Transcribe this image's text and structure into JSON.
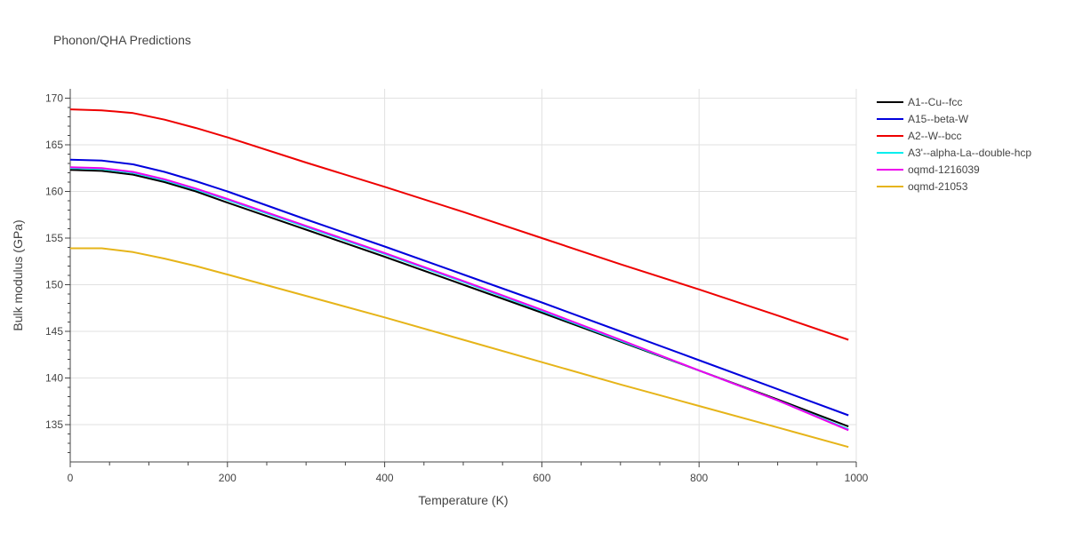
{
  "chart_data": {
    "type": "line",
    "title": "Phonon/QHA Predictions",
    "xlabel": "Temperature (K)",
    "ylabel": "Bulk modulus (GPa)",
    "xlim": [
      0,
      1000
    ],
    "ylim": [
      131,
      171
    ],
    "xticks": [
      0,
      200,
      400,
      600,
      800,
      1000
    ],
    "yticks": [
      135,
      140,
      145,
      150,
      155,
      160,
      165,
      170
    ],
    "grid": true,
    "legend": "right",
    "series": [
      {
        "name": "A1--Cu--fcc",
        "color": "#000000",
        "x": [
          0,
          40,
          80,
          120,
          160,
          200,
          300,
          400,
          500,
          600,
          700,
          800,
          900,
          990
        ],
        "y": [
          162.3,
          162.2,
          161.8,
          161.0,
          160.0,
          158.8,
          155.9,
          153.0,
          150.0,
          147.0,
          143.9,
          140.8,
          137.7,
          134.8
        ]
      },
      {
        "name": "A15--beta-W",
        "color": "#0000dd",
        "x": [
          0,
          40,
          80,
          120,
          160,
          200,
          300,
          400,
          500,
          600,
          700,
          800,
          900,
          990
        ],
        "y": [
          163.4,
          163.3,
          162.9,
          162.1,
          161.1,
          160.0,
          157.0,
          154.1,
          151.1,
          148.1,
          145.0,
          141.9,
          138.8,
          136.0
        ]
      },
      {
        "name": "A2--W--bcc",
        "color": "#ee0000",
        "x": [
          0,
          40,
          80,
          120,
          160,
          200,
          300,
          400,
          500,
          600,
          700,
          800,
          900,
          990
        ],
        "y": [
          168.8,
          168.7,
          168.4,
          167.7,
          166.8,
          165.8,
          163.1,
          160.5,
          157.8,
          155.0,
          152.2,
          149.5,
          146.7,
          144.1
        ]
      },
      {
        "name": "A3'--alpha-La--double-hcp",
        "color": "#00eeee",
        "x": [
          0,
          40,
          80,
          120,
          160,
          200,
          300,
          400,
          500,
          600,
          700,
          800,
          900,
          990
        ],
        "y": [
          162.5,
          162.4,
          162.0,
          161.2,
          160.2,
          159.1,
          156.2,
          153.3,
          150.3,
          147.2,
          144.0,
          140.8,
          137.6,
          134.5
        ]
      },
      {
        "name": "oqmd-1216039",
        "color": "#ee00ee",
        "x": [
          0,
          40,
          80,
          120,
          160,
          200,
          300,
          400,
          500,
          600,
          700,
          800,
          900,
          990
        ],
        "y": [
          162.6,
          162.5,
          162.1,
          161.3,
          160.3,
          159.2,
          156.3,
          153.4,
          150.4,
          147.3,
          144.1,
          140.8,
          137.6,
          134.4
        ]
      },
      {
        "name": "oqmd-21053",
        "color": "#e6b419",
        "x": [
          0,
          40,
          80,
          120,
          160,
          200,
          300,
          400,
          500,
          600,
          700,
          800,
          900,
          990
        ],
        "y": [
          153.9,
          153.9,
          153.5,
          152.8,
          152.0,
          151.1,
          148.8,
          146.5,
          144.1,
          141.7,
          139.3,
          137.0,
          134.7,
          132.6
        ]
      }
    ]
  }
}
